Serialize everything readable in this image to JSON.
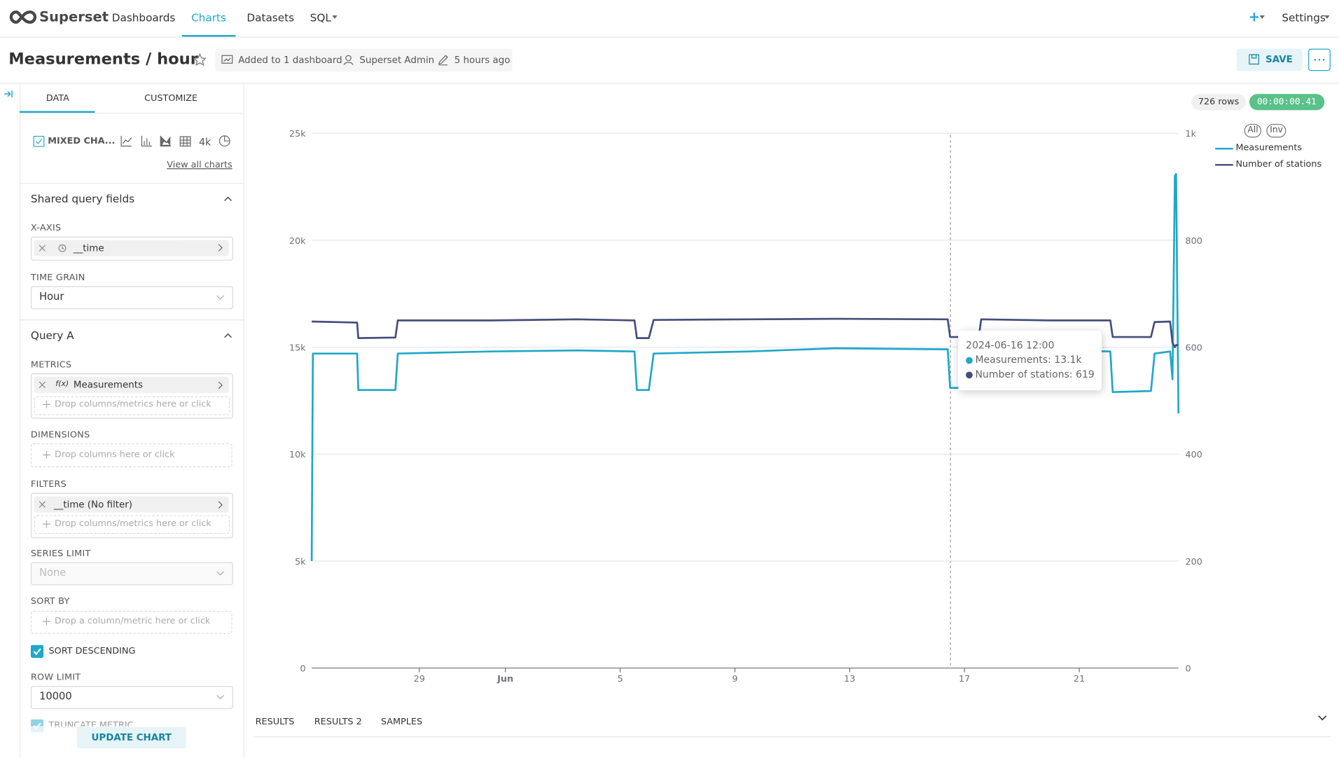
{
  "nav": {
    "brand": "Superset",
    "items": [
      "Dashboards",
      "Charts",
      "Datasets",
      "SQL"
    ],
    "new": "+",
    "settings": "Settings"
  },
  "header": {
    "title": "Measurements / hour",
    "dashboards": "Added to 1 dashboard",
    "owner": "Superset Admin",
    "modified": "5 hours ago",
    "save": "SAVE"
  },
  "sidebar": {
    "tabs": [
      "DATA",
      "CUSTOMIZE"
    ],
    "viz_type": "MIXED CHA...",
    "viz_4k": "4k",
    "view_all": "View all charts",
    "shared_section": "Shared query fields",
    "x_axis": {
      "label": "X-AXIS",
      "value": "__time"
    },
    "time_grain": {
      "label": "TIME GRAIN",
      "value": "Hour"
    },
    "query_section": "Query A",
    "metrics": {
      "label": "METRICS",
      "icon": "f(x)",
      "value": "Measurements",
      "placeholder": "Drop columns/metrics here or click"
    },
    "dimensions": {
      "label": "DIMENSIONS",
      "placeholder": "Drop columns here or click"
    },
    "filters": {
      "label": "FILTERS",
      "value": "__time (No filter)",
      "placeholder": "Drop columns/metrics here or click"
    },
    "series_limit": {
      "label": "SERIES LIMIT",
      "value": "None"
    },
    "sort_by": {
      "label": "SORT BY",
      "placeholder": "Drop a column/metric here or click"
    },
    "sort_descending": "SORT DESCENDING",
    "row_limit": {
      "label": "ROW LIMIT",
      "value": "10000"
    },
    "truncate_metric": "TRUNCATE METRIC",
    "update": "UPDATE CHART"
  },
  "results_tabs": [
    "RESULTS",
    "RESULTS 2",
    "SAMPLES"
  ],
  "chart_data": {
    "type": "line",
    "row_count": "726 rows",
    "duration": "00:00:00.41",
    "legend_buttons": [
      "All",
      "Inv"
    ],
    "x": [
      "2024-05-25 06:00",
      "2024-05-25 07:00",
      "2024-05-26 20:00",
      "2024-05-26 21:00",
      "2024-05-28 04:00",
      "2024-05-28 06:00",
      "2024-05-31 12:00",
      "2024-06-03 12:00",
      "2024-06-05 12:00",
      "2024-06-05 14:00",
      "2024-06-06 00:00",
      "2024-06-06 04:00",
      "2024-06-09 12:00",
      "2024-06-12 12:00",
      "2024-06-16 10:00",
      "2024-06-16 12:00",
      "2024-06-17 12:00",
      "2024-06-17 14:00",
      "2024-06-20 00:00",
      "2024-06-22 02:00",
      "2024-06-22 04:00",
      "2024-06-23 12:00",
      "2024-06-23 15:00",
      "2024-06-24 04:00",
      "2024-06-24 06:00",
      "2024-06-24 08:00",
      "2024-06-24 09:00",
      "2024-06-24 11:00"
    ],
    "series": [
      {
        "name": "Measurements",
        "color": "#20a7c9",
        "axis": "y",
        "values": [
          5000,
          14700,
          14700,
          13000,
          13000,
          14700,
          14800,
          14850,
          14800,
          13000,
          13000,
          14700,
          14800,
          14950,
          14900,
          13100,
          13100,
          14800,
          14850,
          14800,
          12900,
          12950,
          14700,
          14800,
          13500,
          23000,
          23100,
          11900
        ]
      },
      {
        "name": "Number of stations",
        "color": "#454e7c",
        "axis": "y2",
        "values": [
          648,
          648,
          646,
          617,
          618,
          650,
          650,
          652,
          650,
          617,
          617,
          651,
          652,
          653,
          652,
          619,
          619,
          652,
          650,
          650,
          619,
          619,
          647,
          648,
          608,
          600,
          604,
          604
        ]
      }
    ],
    "xlim": [
      "2024-05-25 06:00",
      "2024-06-24 11:00"
    ],
    "xticks": [
      {
        "value": "2024-05-29",
        "label": "29"
      },
      {
        "value": "2024-06-01",
        "label": "Jun"
      },
      {
        "value": "2024-06-05",
        "label": "5"
      },
      {
        "value": "2024-06-09",
        "label": "9"
      },
      {
        "value": "2024-06-13",
        "label": "13"
      },
      {
        "value": "2024-06-17",
        "label": "17"
      },
      {
        "value": "2024-06-21",
        "label": "21"
      }
    ],
    "ylim": [
      0,
      25000
    ],
    "yticks": [
      0,
      {
        "value": 5000,
        "label": "5k"
      },
      {
        "value": 10000,
        "label": "10k"
      },
      {
        "value": 15000,
        "label": "15k"
      },
      {
        "value": 20000,
        "label": "20k"
      },
      {
        "value": 25000,
        "label": "25k"
      }
    ],
    "y2lim": [
      0,
      1000
    ],
    "y2ticks": [
      0,
      200,
      400,
      600,
      800,
      {
        "value": 1000,
        "label": "1k"
      }
    ],
    "grid": true,
    "legend": "top-right",
    "tooltip": {
      "title": "2024-06-16 12:00",
      "lines": [
        "Measurements: 13.1k",
        "Number of stations: 619"
      ]
    }
  }
}
